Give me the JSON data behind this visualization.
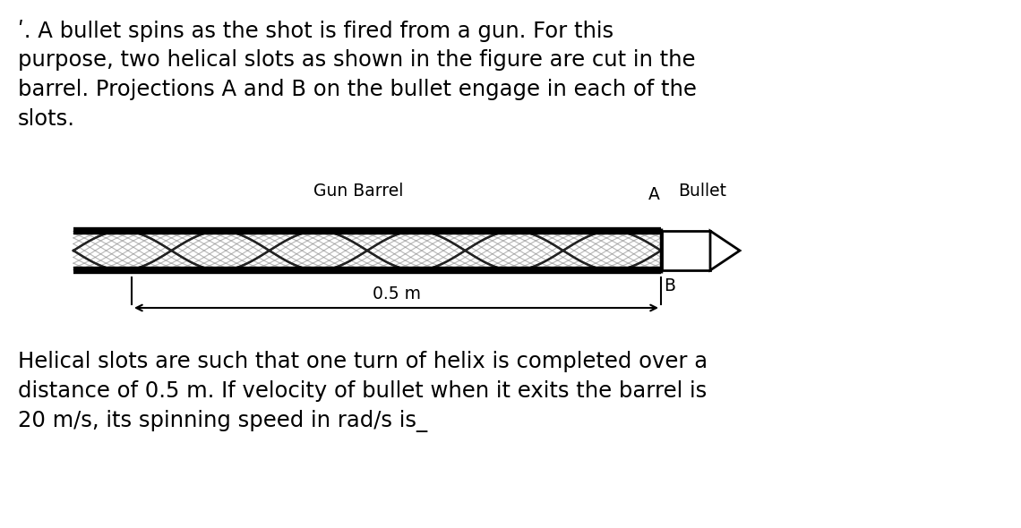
{
  "bg_color": "#ffffff",
  "text_color": "#000000",
  "label_gun_barrel": "Gun Barrel",
  "label_bullet": "Bullet",
  "label_A": "A",
  "label_B": "B",
  "label_distance": "0.5 m",
  "barrel_color": "#000000",
  "fig_width": 11.4,
  "fig_height": 5.9,
  "font_size_text": 17.5,
  "font_size_label": 13.5,
  "top_text_line1": "ʹ. A bullet spins as the shot is fired from a gun. For this",
  "top_text_line2": "purpose, two helical slots as shown in the figure are cut in the",
  "top_text_line3": "barrel. Projections A and B on the bullet engage in each of the",
  "top_text_line4": "slots.",
  "bottom_text_line1": "Helical slots are such that one turn of helix is completed over a",
  "bottom_text_line2": "distance of 0.5 m. If velocity of bullet when it exits the barrel is",
  "bottom_text_line3": "20 m/s, its spinning speed in rad/s is_"
}
